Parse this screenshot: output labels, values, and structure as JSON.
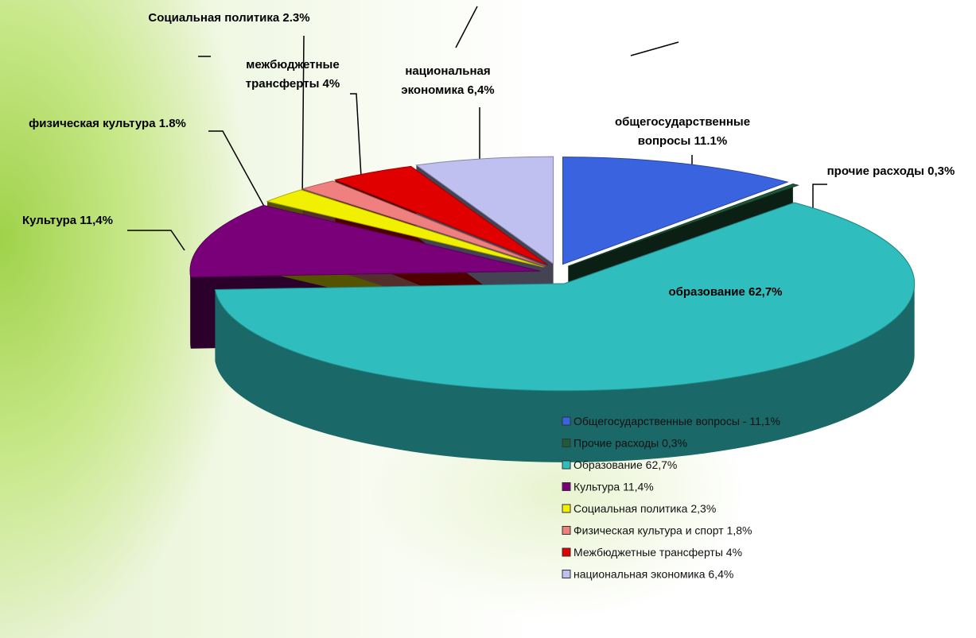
{
  "chart_data": {
    "type": "pie",
    "categories": [
      "Общегосударственные вопросы - 11,1%",
      "Прочие расходы 0,3%",
      "Образование 62,7%",
      "Культура 11,4%",
      "Социальная политика 2,3%",
      "Физическая культура и спорт 1,8%",
      "Межбюджетные трансферты 4%",
      "национальная экономика 6,4%"
    ],
    "values": [
      11.1,
      0.3,
      62.7,
      11.4,
      2.3,
      1.8,
      4,
      6.4
    ],
    "value_labels": [
      "общегосударственные\nвопросы 11.1%",
      "прочие расходы 0,3%",
      "образование 62,7%",
      "Культура 11,4%",
      "Социальная политика 2.3%",
      "физическая культура 1.8%",
      "межбюджетные\nтрансферты 4%",
      "национальная\nэкономика 6,4%"
    ],
    "colors": [
      "#3a63e0",
      "#1f5a3a",
      "#2fbdbd",
      "#7a007a",
      "#f0f000",
      "#f08080",
      "#e00000",
      "#c0c0f0"
    ],
    "legend": "bottom-right"
  }
}
